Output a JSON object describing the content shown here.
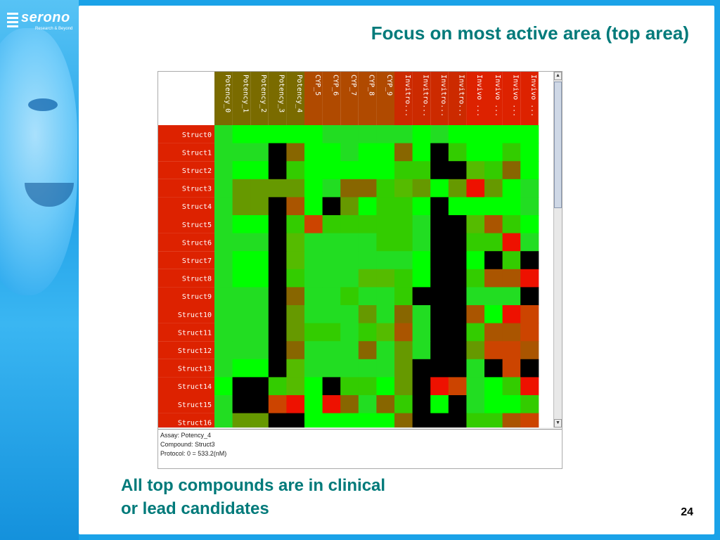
{
  "brand": {
    "name": "serono",
    "tagline": "Research & Beyond"
  },
  "slide": {
    "title": "Focus on most active area (top area)",
    "footer_line1": "All top compounds are in clinical",
    "footer_line2": "or lead candidates",
    "page_number": "24"
  },
  "heatmap": {
    "columns": [
      "Potency_0",
      "Potency_1",
      "Potency_2",
      "Potency_3",
      "Potency_4",
      "CYP_5",
      "CYP_6",
      "CYP_7",
      "CYP_8",
      "CYP_9",
      "Invitro...",
      "Invitro...",
      "Invitro...",
      "Invitro...",
      "Invivo ...",
      "Invivo ...",
      "Invivo ...",
      "Invivo ..."
    ],
    "column_header_colors": [
      "#7a6b00",
      "#7a6b00",
      "#7a6b00",
      "#7a6b00",
      "#7a6b00",
      "#b04a00",
      "#b04a00",
      "#b04a00",
      "#b04a00",
      "#b04a00",
      "#cc2a00",
      "#cc2a00",
      "#cc2a00",
      "#cc2a00",
      "#dd2200",
      "#dd2200",
      "#dd2200",
      "#dd2200"
    ],
    "row_header_color": "#dd2200",
    "rows": [
      "Struct0",
      "Struct1",
      "Struct2",
      "Struct3",
      "Struct4",
      "Struct5",
      "Struct6",
      "Struct7",
      "Struct8",
      "Struct9",
      "Struct10",
      "Struct11",
      "Struct12",
      "Struct13",
      "Struct14",
      "Struct15",
      "Struct16"
    ],
    "palette": {
      "A": "#00ff00",
      "B": "#22dd22",
      "C": "#33cc00",
      "D": "#55bb00",
      "E": "#669900",
      "F": "#886600",
      "G": "#aa5500",
      "H": "#cc4400",
      "R": "#ee1100",
      "K": "#000000"
    },
    "cells": [
      "BAAAAABBBBBABAAAAA",
      "BBBKFAABAAFAKCAACA",
      "BAAKCAAAAACCKKDCFA",
      "BEEEEABFFCDEAEREAB",
      "BEEKGAKEACCAKAAAAB",
      "BAAKCHCCCCCBKKDGCA",
      "BBBKDBBBBCCBKKCCRB",
      "BAAKDBBBBBBAKKAKCK",
      "BAAKCBBBDDCAKKCGGR",
      "BBBKFBBCBBCKKKBBBK",
      "BBBKEBBBEBFBKKGARH",
      "BBBKECCBCDGBKKCGGH",
      "BBBKFBBBFBEBKKEHHG",
      "BAAKDBBBBBEKKKBKHK",
      "AKKCDAKCCAEKRHBACR",
      "BKKHRARFBFCKAKBAAC",
      "BEEKKAAAAAFKKKCCGH"
    ]
  },
  "info": {
    "assay": "Assay: Potency_4",
    "compound": "Compound: Struct3",
    "protocol": "Protocol: 0 = 533.2(nM)"
  }
}
